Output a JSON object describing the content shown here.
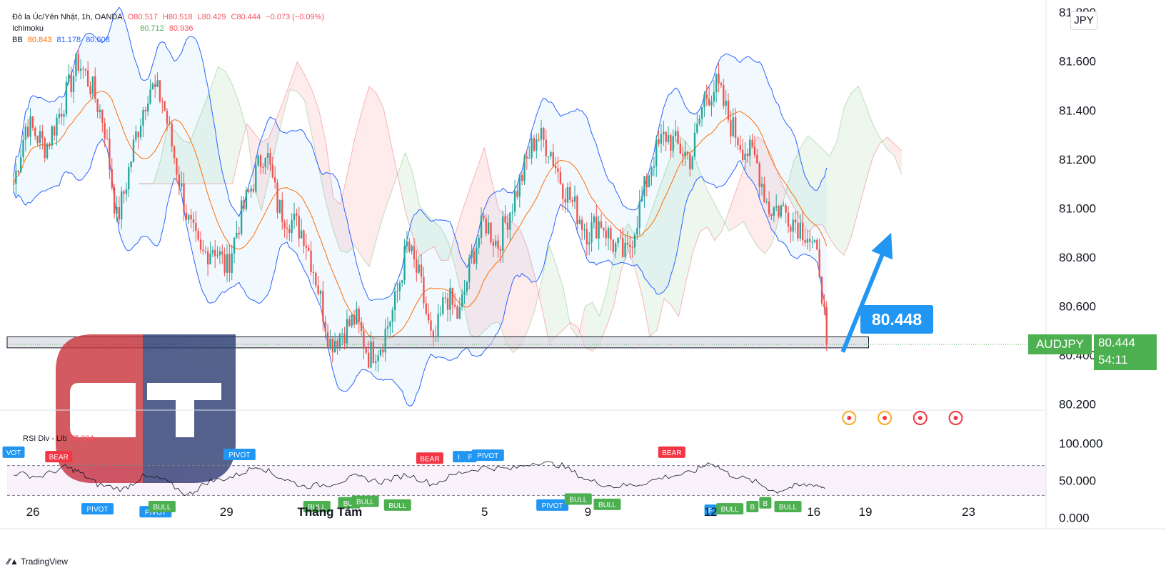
{
  "legend": {
    "symbol_line": "Đô la Úc/Yên Nhật, 1h, OANDA",
    "ohlc": {
      "o": "O80.517",
      "h": "H80.518",
      "l": "L80.429",
      "c": "C80.444",
      "chg": "−0.073 (−0.09%)"
    },
    "ichimoku": {
      "label": "Ichimoku",
      "v1": "80.712",
      "v2": "80.936"
    },
    "bb": {
      "label": "BB",
      "basis": "80.843",
      "upper": "81.178",
      "lower": "80.508"
    }
  },
  "currency_badge": "JPY",
  "price_tag": {
    "symbol": "AUDJPY",
    "price": "80.444",
    "countdown": "54:11"
  },
  "callout_value": "80.448",
  "rsi_title": {
    "label": "RSI Div - Lib",
    "value": "47.284"
  },
  "watermark_letters": "CT",
  "tradingview_logo": "TradingView",
  "colors": {
    "up": "#26a69a",
    "down": "#ef5350",
    "bb": "#2962ff",
    "basis": "#ff6d00",
    "cloud_bull": "#4caf50",
    "cloud_bear": "#f23645",
    "tag": "#4caf50",
    "callout": "#2196f3"
  },
  "chart_data": [
    {
      "type": "candlestick",
      "title": "Đô la Úc/Yên Nhật, 1h, OANDA",
      "y_ticks": [
        "81.800",
        "81.600",
        "81.400",
        "81.200",
        "81.000",
        "80.800",
        "80.600",
        "80.400",
        "80.200"
      ],
      "ylim": [
        80.1,
        81.85
      ],
      "x_ticks": [
        {
          "label": "26",
          "x": 0.4
        },
        {
          "label": "29",
          "x": 3.4
        },
        {
          "label": "Tháng Tám",
          "x": 5.0
        },
        {
          "label": "5",
          "x": 7.4
        },
        {
          "label": "9",
          "x": 9.0
        },
        {
          "label": "12",
          "x": 10.9
        },
        {
          "label": "16",
          "x": 12.5
        },
        {
          "label": "19",
          "x": 13.3
        },
        {
          "label": "23",
          "x": 14.9
        }
      ],
      "xlim": [
        0,
        16.1
      ],
      "price_path": [
        [
          0.1,
          81.1
        ],
        [
          0.3,
          81.35
        ],
        [
          0.6,
          81.25
        ],
        [
          0.9,
          81.45
        ],
        [
          1.1,
          81.6
        ],
        [
          1.3,
          81.5
        ],
        [
          1.5,
          81.35
        ],
        [
          1.7,
          80.95
        ],
        [
          1.8,
          81.05
        ],
        [
          2.0,
          81.3
        ],
        [
          2.2,
          81.5
        ],
        [
          2.4,
          81.45
        ],
        [
          2.6,
          81.2
        ],
        [
          2.8,
          80.95
        ],
        [
          3.0,
          80.8
        ],
        [
          3.2,
          80.85
        ],
        [
          3.4,
          80.75
        ],
        [
          3.6,
          80.95
        ],
        [
          3.8,
          81.1
        ],
        [
          4.0,
          81.25
        ],
        [
          4.2,
          81.0
        ],
        [
          4.4,
          80.95
        ],
        [
          4.6,
          80.9
        ],
        [
          4.8,
          80.7
        ],
        [
          5.0,
          80.45
        ],
        [
          5.2,
          80.5
        ],
        [
          5.4,
          80.55
        ],
        [
          5.6,
          80.4
        ],
        [
          5.8,
          80.45
        ],
        [
          6.0,
          80.6
        ],
        [
          6.2,
          80.85
        ],
        [
          6.4,
          80.7
        ],
        [
          6.6,
          80.42
        ],
        [
          6.8,
          80.65
        ],
        [
          7.0,
          80.55
        ],
        [
          7.2,
          80.8
        ],
        [
          7.4,
          80.95
        ],
        [
          7.6,
          80.85
        ],
        [
          7.8,
          81.0
        ],
        [
          8.0,
          81.15
        ],
        [
          8.2,
          81.3
        ],
        [
          8.4,
          81.25
        ],
        [
          8.6,
          81.1
        ],
        [
          8.8,
          81.0
        ],
        [
          9.0,
          80.9
        ],
        [
          9.2,
          80.95
        ],
        [
          9.4,
          80.85
        ],
        [
          9.6,
          80.8
        ],
        [
          9.8,
          81.0
        ],
        [
          10.0,
          81.2
        ],
        [
          10.2,
          81.3
        ],
        [
          10.4,
          81.25
        ],
        [
          10.6,
          81.2
        ],
        [
          10.8,
          81.45
        ],
        [
          11.0,
          81.5
        ],
        [
          11.2,
          81.35
        ],
        [
          11.4,
          81.25
        ],
        [
          11.6,
          81.2
        ],
        [
          11.8,
          81.0
        ],
        [
          12.0,
          81.0
        ],
        [
          12.2,
          80.95
        ],
        [
          12.4,
          80.9
        ],
        [
          12.6,
          80.75
        ],
        [
          12.7,
          80.44
        ]
      ],
      "last_price": 80.444,
      "support_zone": [
        80.43,
        80.475
      ],
      "projection_arrow": {
        "from": [
          12.95,
          80.448
        ],
        "to": [
          13.7,
          80.9
        ]
      }
    },
    {
      "type": "line",
      "title": "RSI Div - Lib",
      "y_ticks": [
        "100.000",
        "50.000",
        "0.000"
      ],
      "ylim": [
        -10,
        110
      ],
      "bands": [
        70,
        30
      ],
      "series": [
        {
          "name": "RSI",
          "points": [
            [
              0.1,
              60
            ],
            [
              0.5,
              55
            ],
            [
              0.9,
              68
            ],
            [
              1.1,
              62
            ],
            [
              1.4,
              45
            ],
            [
              1.8,
              38
            ],
            [
              2.1,
              55
            ],
            [
              2.4,
              52
            ],
            [
              2.8,
              30
            ],
            [
              3.1,
              48
            ],
            [
              3.5,
              55
            ],
            [
              3.9,
              70
            ],
            [
              4.2,
              55
            ],
            [
              4.6,
              42
            ],
            [
              5.0,
              45
            ],
            [
              5.4,
              55
            ],
            [
              5.8,
              48
            ],
            [
              6.2,
              58
            ],
            [
              6.6,
              45
            ],
            [
              7.0,
              60
            ],
            [
              7.4,
              68
            ],
            [
              7.8,
              65
            ],
            [
              8.2,
              75
            ],
            [
              8.6,
              70
            ],
            [
              9.0,
              50
            ],
            [
              9.4,
              42
            ],
            [
              9.8,
              45
            ],
            [
              10.2,
              55
            ],
            [
              10.6,
              60
            ],
            [
              10.9,
              75
            ],
            [
              11.2,
              58
            ],
            [
              11.6,
              48
            ],
            [
              11.9,
              35
            ],
            [
              12.2,
              42
            ],
            [
              12.5,
              45
            ],
            [
              12.7,
              40
            ]
          ]
        }
      ],
      "signals": [
        {
          "label": "VOT",
          "x": 0.1,
          "y": 88,
          "color": "#2196f3"
        },
        {
          "label": "BEAR",
          "x": 0.8,
          "y": 82,
          "color": "#f23645"
        },
        {
          "label": "PIVOT",
          "x": 1.4,
          "y": 12,
          "color": "#2196f3"
        },
        {
          "label": "PIVOT",
          "x": 2.3,
          "y": 8,
          "color": "#2196f3"
        },
        {
          "label": "BULL",
          "x": 2.4,
          "y": 15,
          "color": "#4caf50"
        },
        {
          "label": "PIVOT",
          "x": 3.6,
          "y": 85,
          "color": "#2196f3"
        },
        {
          "label": "BULL",
          "x": 4.8,
          "y": 15,
          "color": "#4caf50"
        },
        {
          "label": "BUI",
          "x": 5.3,
          "y": 20,
          "color": "#4caf50"
        },
        {
          "label": "BULL",
          "x": 5.55,
          "y": 22,
          "color": "#4caf50"
        },
        {
          "label": "BULL",
          "x": 6.05,
          "y": 17,
          "color": "#4caf50"
        },
        {
          "label": "BEAR",
          "x": 6.55,
          "y": 80,
          "color": "#f23645"
        },
        {
          "label": "I",
          "x": 7.0,
          "y": 82,
          "color": "#2196f3"
        },
        {
          "label": "P",
          "x": 7.18,
          "y": 82,
          "color": "#2196f3"
        },
        {
          "label": "PIVOT",
          "x": 7.45,
          "y": 84,
          "color": "#2196f3"
        },
        {
          "label": "PIVOT",
          "x": 8.45,
          "y": 17,
          "color": "#2196f3"
        },
        {
          "label": "BULL",
          "x": 8.85,
          "y": 25,
          "color": "#4caf50"
        },
        {
          "label": "BULL",
          "x": 9.3,
          "y": 18,
          "color": "#4caf50"
        },
        {
          "label": "BEAR",
          "x": 10.3,
          "y": 88,
          "color": "#f23645"
        },
        {
          "label": "P",
          "x": 10.9,
          "y": 10,
          "color": "#2196f3"
        },
        {
          "label": "BULL",
          "x": 11.2,
          "y": 12,
          "color": "#4caf50"
        },
        {
          "label": "B",
          "x": 11.55,
          "y": 15,
          "color": "#4caf50"
        },
        {
          "label": "B",
          "x": 11.75,
          "y": 20,
          "color": "#4caf50"
        },
        {
          "label": "BULL",
          "x": 12.1,
          "y": 15,
          "color": "#4caf50"
        }
      ]
    }
  ]
}
